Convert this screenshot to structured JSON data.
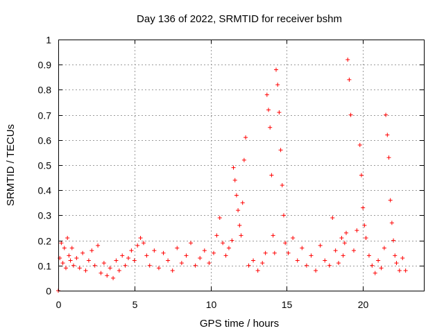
{
  "chart_data": {
    "type": "scatter",
    "title": "Day 136 of 2022, SRMTID for receiver bshm",
    "xlabel": "GPS time / hours",
    "ylabel": "SRMTID / TECUs",
    "xlim": [
      0,
      24
    ],
    "ylim": [
      0,
      1
    ],
    "grid": true,
    "marker": "+",
    "xticks": [
      0,
      5,
      10,
      15,
      20
    ],
    "xtick_labels": [
      "0",
      "5",
      "10",
      "15",
      "20"
    ],
    "yticks": [
      0,
      0.1,
      0.2,
      0.3,
      0.4,
      0.5,
      0.6,
      0.7,
      0.8,
      0.9,
      1
    ],
    "ytick_labels": [
      "0",
      "0.1",
      "0.2",
      "0.3",
      "0.4",
      "0.5",
      "0.6",
      "0.7",
      "0.8",
      "0.9",
      "1"
    ],
    "series": [
      {
        "name": "bshm",
        "color": "#ff0000",
        "x": [
          0.0,
          0.1,
          0.2,
          0.3,
          0.4,
          0.5,
          0.6,
          0.7,
          0.8,
          0.9,
          1.0,
          1.2,
          1.4,
          1.6,
          1.8,
          2.0,
          2.2,
          2.4,
          2.6,
          2.8,
          3.0,
          3.2,
          3.4,
          3.6,
          3.8,
          4.0,
          4.2,
          4.4,
          4.6,
          4.8,
          5.0,
          5.2,
          5.4,
          5.6,
          5.8,
          6.0,
          6.3,
          6.6,
          6.9,
          7.2,
          7.5,
          7.8,
          8.1,
          8.4,
          8.7,
          9.0,
          9.3,
          9.6,
          9.9,
          10.2,
          10.4,
          10.6,
          10.8,
          11.0,
          11.2,
          11.4,
          11.5,
          11.6,
          11.7,
          11.8,
          11.9,
          12.0,
          12.1,
          12.2,
          12.3,
          12.5,
          12.8,
          13.1,
          13.4,
          13.6,
          13.7,
          13.8,
          13.9,
          14.0,
          14.1,
          14.2,
          14.3,
          14.4,
          14.5,
          14.6,
          14.7,
          14.8,
          14.9,
          15.1,
          15.4,
          15.7,
          16.0,
          16.3,
          16.6,
          16.9,
          17.2,
          17.5,
          17.8,
          18.0,
          18.2,
          18.4,
          18.6,
          18.7,
          18.8,
          18.9,
          19.0,
          19.1,
          19.2,
          19.4,
          19.6,
          19.8,
          19.9,
          20.0,
          20.1,
          20.2,
          20.4,
          20.6,
          20.8,
          21.0,
          21.2,
          21.4,
          21.5,
          21.6,
          21.7,
          21.8,
          21.9,
          22.0,
          22.1,
          22.2,
          22.4,
          22.6,
          22.8
        ],
        "y": [
          0.0,
          0.13,
          0.19,
          0.11,
          0.17,
          0.09,
          0.21,
          0.14,
          0.12,
          0.17,
          0.1,
          0.13,
          0.09,
          0.15,
          0.08,
          0.12,
          0.16,
          0.1,
          0.18,
          0.07,
          0.11,
          0.06,
          0.09,
          0.05,
          0.12,
          0.08,
          0.14,
          0.1,
          0.13,
          0.16,
          0.12,
          0.18,
          0.21,
          0.19,
          0.14,
          0.1,
          0.16,
          0.09,
          0.15,
          0.12,
          0.08,
          0.17,
          0.11,
          0.14,
          0.19,
          0.1,
          0.13,
          0.16,
          0.11,
          0.15,
          0.22,
          0.29,
          0.19,
          0.14,
          0.17,
          0.2,
          0.49,
          0.44,
          0.38,
          0.32,
          0.26,
          0.22,
          0.35,
          0.52,
          0.61,
          0.1,
          0.12,
          0.08,
          0.11,
          0.15,
          0.78,
          0.72,
          0.65,
          0.46,
          0.22,
          0.15,
          0.88,
          0.82,
          0.71,
          0.56,
          0.42,
          0.3,
          0.19,
          0.15,
          0.21,
          0.12,
          0.17,
          0.1,
          0.14,
          0.08,
          0.18,
          0.12,
          0.1,
          0.29,
          0.16,
          0.11,
          0.21,
          0.14,
          0.19,
          0.23,
          0.92,
          0.84,
          0.7,
          0.16,
          0.24,
          0.58,
          0.46,
          0.33,
          0.26,
          0.21,
          0.14,
          0.1,
          0.07,
          0.12,
          0.09,
          0.17,
          0.7,
          0.62,
          0.53,
          0.36,
          0.27,
          0.2,
          0.14,
          0.11,
          0.08,
          0.13,
          0.08
        ]
      }
    ]
  }
}
